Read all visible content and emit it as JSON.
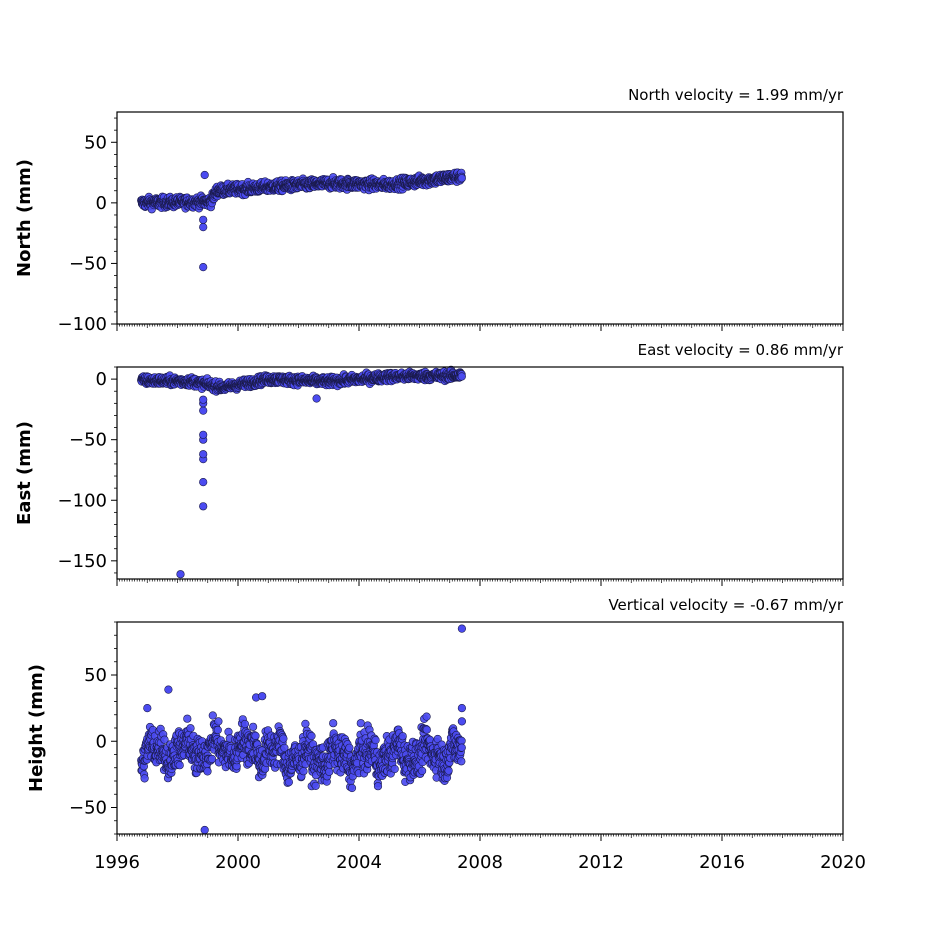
{
  "chart_data": [
    {
      "type": "scatter",
      "title": "North velocity = 1.99 mm/yr",
      "ylabel": "North (mm)",
      "xlim": [
        1996,
        2020
      ],
      "ylim": [
        -100,
        75
      ],
      "yticks": [
        -100,
        -50,
        0,
        50
      ],
      "ytick_labels": [
        "−100",
        "−50",
        "0",
        "50"
      ],
      "grid": false,
      "trend": {
        "x": [
          1996.8,
          1999.1,
          1999.3,
          2001.5,
          2003.0,
          2005.0,
          2007.4
        ],
        "y": [
          0,
          1,
          10,
          14,
          16,
          15,
          22
        ],
        "noise": 3
      },
      "outliers": {
        "x": [
          1998.85,
          1998.85,
          1998.85,
          1998.9
        ],
        "y": [
          -53,
          -20,
          -14,
          23
        ]
      }
    },
    {
      "type": "scatter",
      "title": "East velocity = 0.86 mm/yr",
      "ylabel": "East (mm)",
      "xlim": [
        1996,
        2020
      ],
      "ylim": [
        -165,
        10
      ],
      "yticks": [
        -150,
        -100,
        -50,
        0
      ],
      "ytick_labels": [
        "−150",
        "−100",
        "−50",
        "0"
      ],
      "grid": false,
      "trend": {
        "x": [
          1996.8,
          1998.5,
          1999.5,
          2001.0,
          2003.0,
          2005.0,
          2007.4
        ],
        "y": [
          -1,
          -2,
          -7,
          0,
          -2,
          2,
          3
        ],
        "noise": 2.5
      },
      "outliers": {
        "x": [
          1998.1,
          1998.85,
          1998.85,
          1998.85,
          1998.85,
          1998.85,
          1998.85,
          1998.85,
          1998.85,
          1998.85,
          2002.6
        ],
        "y": [
          -161,
          -105,
          -85,
          -66,
          -62,
          -50,
          -46,
          -26,
          -20,
          -17,
          -16
        ]
      }
    },
    {
      "type": "scatter",
      "title": "Vertical velocity = -0.67 mm/yr",
      "ylabel": "Height (mm)",
      "xlim": [
        1996,
        2020
      ],
      "ylim": [
        -70,
        90
      ],
      "yticks": [
        -50,
        0,
        50
      ],
      "ytick_labels": [
        "−50",
        "0",
        "50"
      ],
      "xticks": [
        1996,
        2000,
        2004,
        2008,
        2012,
        2016,
        2020
      ],
      "xtick_labels": [
        "1996",
        "2000",
        "2004",
        "2008",
        "2012",
        "2016",
        "2020"
      ],
      "grid": false,
      "trend": {
        "x": [
          1996.8,
          2000.5,
          2002.0,
          2004.0,
          2005.5,
          2007.4
        ],
        "y": [
          -8,
          -5,
          -13,
          -12,
          -10,
          -8
        ],
        "noise": 10,
        "seasonal": 6
      },
      "outliers": {
        "x": [
          1997.0,
          1997.7,
          1998.9,
          2000.6,
          2000.8,
          2007.4,
          2007.4,
          2007.4
        ],
        "y": [
          25,
          39,
          -67,
          33,
          34,
          85,
          25,
          15
        ]
      }
    }
  ],
  "style": {
    "marker_fill": "#4b4bf0",
    "marker_edge": "#1a1a4a",
    "axis_color": "#000000"
  }
}
